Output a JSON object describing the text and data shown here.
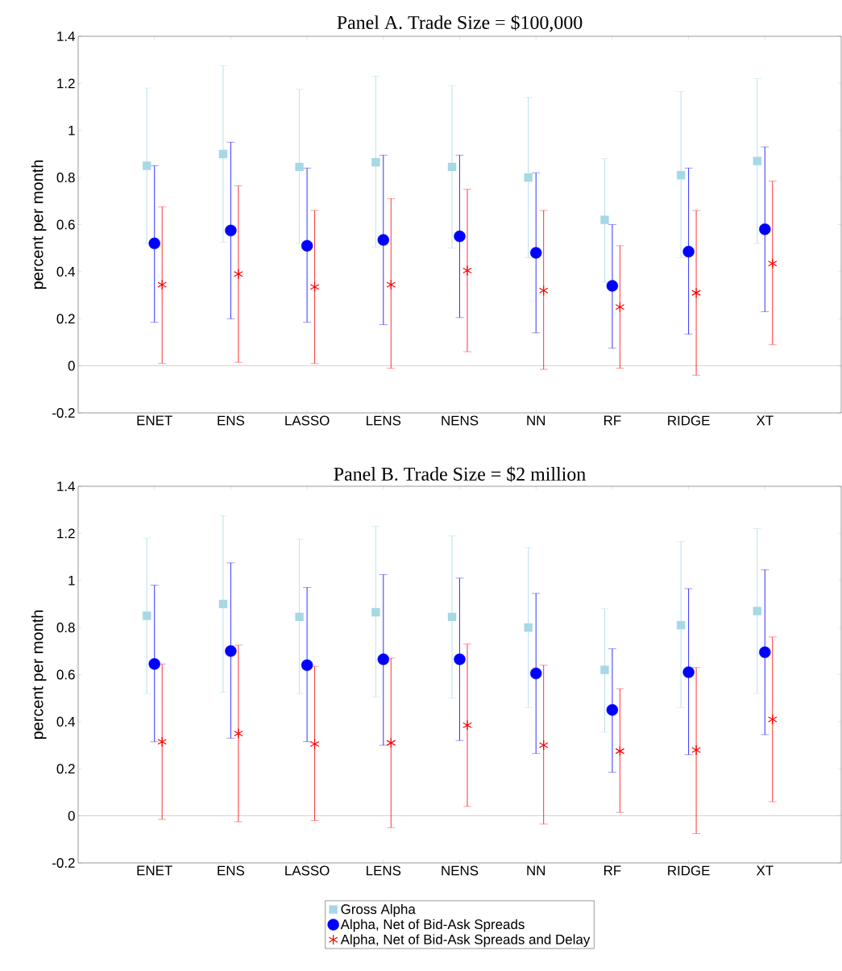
{
  "chart_data": [
    {
      "type": "scatter",
      "title": "Panel A. Trade Size = $100,000",
      "ylabel": "percent per month",
      "categories": [
        "ENET",
        "ENS",
        "LASSO",
        "LENS",
        "NENS",
        "NN",
        "RF",
        "RIDGE",
        "XT"
      ],
      "ylim": [
        -0.2,
        1.4
      ],
      "yticks": [
        -0.2,
        0,
        0.2,
        0.4,
        0.6,
        0.8,
        1,
        1.2,
        1.4
      ],
      "grid": false,
      "legend": false,
      "ref_lines": [
        {
          "axis": "y",
          "value": 0,
          "color": "#808080"
        }
      ],
      "series": [
        {
          "color": "#a6d8e6",
          "marker": "square",
          "values": [
            0.85,
            0.9,
            0.845,
            0.865,
            0.845,
            0.8,
            0.62,
            0.81,
            0.87
          ],
          "errors": [
            [
              0.52,
              1.18
            ],
            [
              0.525,
              1.275
            ],
            [
              0.52,
              1.175
            ],
            [
              0.505,
              1.23
            ],
            [
              0.5,
              1.19
            ],
            [
              0.46,
              1.14
            ],
            [
              0.355,
              0.88
            ],
            [
              0.46,
              1.165
            ],
            [
              0.52,
              1.22
            ]
          ]
        },
        {
          "color": "#0000ff",
          "marker": "circle",
          "values": [
            0.52,
            0.575,
            0.51,
            0.535,
            0.55,
            0.48,
            0.34,
            0.485,
            0.58
          ],
          "errors": [
            [
              0.185,
              0.85
            ],
            [
              0.2,
              0.95
            ],
            [
              0.185,
              0.84
            ],
            [
              0.175,
              0.895
            ],
            [
              0.205,
              0.895
            ],
            [
              0.14,
              0.82
            ],
            [
              0.075,
              0.6
            ],
            [
              0.135,
              0.84
            ],
            [
              0.23,
              0.93
            ]
          ]
        },
        {
          "color": "#ff0000",
          "marker": "cross",
          "values": [
            0.345,
            0.39,
            0.335,
            0.345,
            0.405,
            0.32,
            0.25,
            0.31,
            0.435
          ],
          "errors": [
            [
              0.01,
              0.675
            ],
            [
              0.015,
              0.765
            ],
            [
              0.01,
              0.66
            ],
            [
              -0.01,
              0.71
            ],
            [
              0.06,
              0.75
            ],
            [
              -0.015,
              0.66
            ],
            [
              -0.01,
              0.51
            ],
            [
              -0.04,
              0.66
            ],
            [
              0.09,
              0.785
            ]
          ]
        }
      ]
    },
    {
      "type": "scatter",
      "title": "Panel B. Trade Size = $2 million",
      "ylabel": "percent per month",
      "categories": [
        "ENET",
        "ENS",
        "LASSO",
        "LENS",
        "NENS",
        "NN",
        "RF",
        "RIDGE",
        "XT"
      ],
      "ylim": [
        -0.2,
        1.4
      ],
      "yticks": [
        -0.2,
        0,
        0.2,
        0.4,
        0.6,
        0.8,
        1,
        1.2,
        1.4
      ],
      "grid": false,
      "legend": "bottom",
      "ref_lines": [
        {
          "axis": "y",
          "value": 0,
          "color": "#808080"
        }
      ],
      "series": [
        {
          "name": "Gross Alpha",
          "color": "#a6d8e6",
          "marker": "square",
          "values": [
            0.85,
            0.9,
            0.845,
            0.865,
            0.845,
            0.8,
            0.62,
            0.81,
            0.87
          ],
          "errors": [
            [
              0.52,
              1.18
            ],
            [
              0.525,
              1.275
            ],
            [
              0.52,
              1.175
            ],
            [
              0.505,
              1.23
            ],
            [
              0.5,
              1.19
            ],
            [
              0.46,
              1.14
            ],
            [
              0.355,
              0.88
            ],
            [
              0.46,
              1.165
            ],
            [
              0.52,
              1.22
            ]
          ]
        },
        {
          "name": "Alpha, Net of Bid-Ask Spreads",
          "color": "#0000ff",
          "marker": "circle",
          "values": [
            0.645,
            0.7,
            0.64,
            0.665,
            0.665,
            0.605,
            0.45,
            0.61,
            0.695
          ],
          "errors": [
            [
              0.315,
              0.98
            ],
            [
              0.33,
              1.075
            ],
            [
              0.315,
              0.97
            ],
            [
              0.3,
              1.025
            ],
            [
              0.32,
              1.01
            ],
            [
              0.265,
              0.945
            ],
            [
              0.185,
              0.71
            ],
            [
              0.26,
              0.965
            ],
            [
              0.345,
              1.045
            ]
          ]
        },
        {
          "name": "Alpha, Net of Bid-Ask Spreads and Delay",
          "color": "#ff0000",
          "marker": "cross",
          "values": [
            0.315,
            0.35,
            0.305,
            0.31,
            0.385,
            0.3,
            0.275,
            0.28,
            0.41
          ],
          "errors": [
            [
              -0.015,
              0.645
            ],
            [
              -0.025,
              0.725
            ],
            [
              -0.02,
              0.635
            ],
            [
              -0.05,
              0.67
            ],
            [
              0.04,
              0.73
            ],
            [
              -0.035,
              0.64
            ],
            [
              0.015,
              0.54
            ],
            [
              -0.075,
              0.63
            ],
            [
              0.06,
              0.76
            ]
          ]
        }
      ]
    }
  ]
}
